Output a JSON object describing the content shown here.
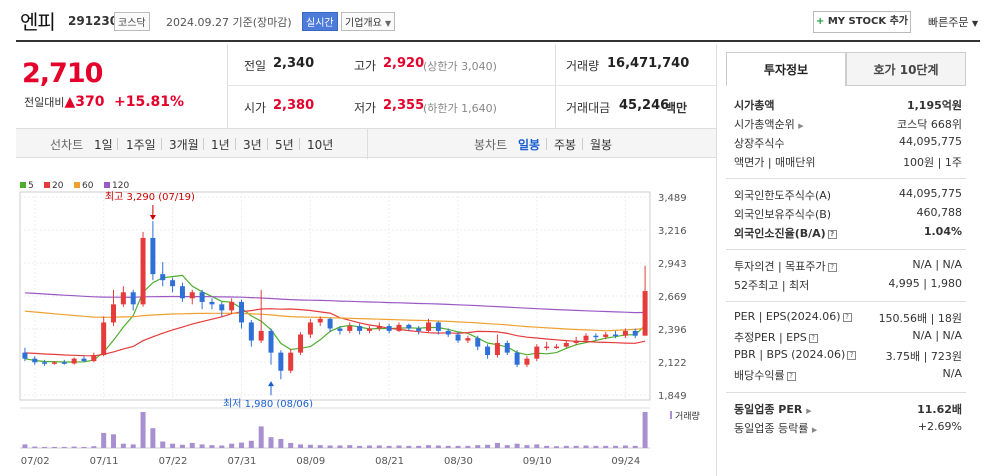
{
  "header": {
    "name": "엔피",
    "code": "291230",
    "market": "코스닥",
    "date_text": "2024.09.27 기준(장마감)",
    "realtime": "실시간",
    "company_info": "기업개요",
    "mystock_btn": "MY STOCK 추가",
    "quick_order": "빠른주문"
  },
  "price": {
    "current": "2,710",
    "change_label": "전일대비",
    "change": "370",
    "change_pct": "+15.81%"
  },
  "quotes": {
    "prev_label": "전일",
    "prev": "2,340",
    "open_label": "시가",
    "open": "2,380",
    "high_label": "고가",
    "high": "2,920",
    "upper_limit": "(상한가 3,040)",
    "low_label": "저가",
    "low": "2,355",
    "lower_limit": "(하한가 1,640)",
    "volume_label": "거래량",
    "volume": "16,471,740",
    "value_label": "거래대금",
    "value": "45,246",
    "value_unit": "백만"
  },
  "period_bar": {
    "line_chart": "선차트",
    "periods": [
      "1일",
      "1주일",
      "3개월",
      "1년",
      "3년",
      "5년",
      "10년"
    ],
    "candle_chart": "봉차트",
    "candle_periods": [
      "일봉",
      "주봉",
      "월봉"
    ],
    "active_candle": "일봉"
  },
  "chart_data": {
    "type": "candlestick",
    "legend": [
      "5",
      "20",
      "60",
      "120"
    ],
    "legend_colors": [
      "#4caf2c",
      "#e63b3b",
      "#f0a030",
      "#9b59c6"
    ],
    "y_ticks": [
      "3,489",
      "3,216",
      "2,943",
      "2,669",
      "2,396",
      "2,122",
      "1,849"
    ],
    "ylim": [
      1849,
      3489
    ],
    "x_ticks": [
      "07/02",
      "07/11",
      "07/22",
      "07/31",
      "08/09",
      "08/21",
      "08/30",
      "09/10",
      "09/24"
    ],
    "x_tick_index": [
      1,
      8,
      15,
      22,
      29,
      37,
      44,
      52,
      61
    ],
    "high_annotation": "최고 3,290 (07/19)",
    "high_value": 3290,
    "high_index": 13,
    "low_annotation": "최저 1,980 (08/06)",
    "low_value": 1980,
    "low_index": 25,
    "volume_label": "거래량",
    "candles": [
      [
        2200,
        2150,
        2240,
        2130
      ],
      [
        2150,
        2120,
        2170,
        2100
      ],
      [
        2120,
        2110,
        2140,
        2090
      ],
      [
        2110,
        2120,
        2130,
        2100
      ],
      [
        2120,
        2110,
        2140,
        2100
      ],
      [
        2110,
        2150,
        2160,
        2100
      ],
      [
        2150,
        2130,
        2170,
        2120
      ],
      [
        2130,
        2180,
        2200,
        2120
      ],
      [
        2180,
        2450,
        2500,
        2170
      ],
      [
        2450,
        2600,
        2720,
        2420
      ],
      [
        2600,
        2700,
        2750,
        2580
      ],
      [
        2700,
        2600,
        2720,
        2550
      ],
      [
        2600,
        3150,
        3200,
        2580
      ],
      [
        3150,
        2850,
        3290,
        2800
      ],
      [
        2850,
        2800,
        2950,
        2750
      ],
      [
        2800,
        2750,
        2820,
        2700
      ],
      [
        2750,
        2650,
        2780,
        2620
      ],
      [
        2650,
        2700,
        2720,
        2600
      ],
      [
        2700,
        2620,
        2720,
        2560
      ],
      [
        2620,
        2600,
        2650,
        2560
      ],
      [
        2600,
        2550,
        2620,
        2500
      ],
      [
        2550,
        2620,
        2650,
        2520
      ],
      [
        2620,
        2450,
        2640,
        2400
      ],
      [
        2450,
        2300,
        2470,
        2250
      ],
      [
        2300,
        2380,
        2720,
        2280
      ],
      [
        2380,
        2200,
        2400,
        2100
      ],
      [
        2200,
        2050,
        2220,
        1980
      ],
      [
        2050,
        2200,
        2230,
        2030
      ],
      [
        2200,
        2350,
        2370,
        2180
      ],
      [
        2350,
        2450,
        2480,
        2320
      ],
      [
        2450,
        2480,
        2500,
        2420
      ],
      [
        2480,
        2400,
        2490,
        2370
      ],
      [
        2400,
        2380,
        2420,
        2350
      ],
      [
        2380,
        2420,
        2450,
        2360
      ],
      [
        2420,
        2380,
        2440,
        2350
      ],
      [
        2380,
        2400,
        2420,
        2360
      ],
      [
        2400,
        2420,
        2450,
        2380
      ],
      [
        2420,
        2380,
        2440,
        2360
      ],
      [
        2380,
        2430,
        2450,
        2370
      ],
      [
        2430,
        2400,
        2440,
        2380
      ],
      [
        2400,
        2380,
        2420,
        2350
      ],
      [
        2380,
        2450,
        2480,
        2370
      ],
      [
        2450,
        2380,
        2460,
        2350
      ],
      [
        2380,
        2350,
        2400,
        2330
      ],
      [
        2350,
        2300,
        2370,
        2280
      ],
      [
        2300,
        2320,
        2340,
        2280
      ],
      [
        2320,
        2250,
        2340,
        2220
      ],
      [
        2250,
        2180,
        2270,
        2150
      ],
      [
        2180,
        2280,
        2350,
        2160
      ],
      [
        2280,
        2200,
        2300,
        2180
      ],
      [
        2200,
        2100,
        2220,
        2080
      ],
      [
        2100,
        2150,
        2170,
        2080
      ],
      [
        2150,
        2250,
        2270,
        2130
      ],
      [
        2250,
        2250,
        2290,
        2220
      ],
      [
        2250,
        2250,
        2270,
        2230
      ],
      [
        2250,
        2280,
        2300,
        2240
      ],
      [
        2280,
        2300,
        2330,
        2260
      ],
      [
        2300,
        2340,
        2360,
        2280
      ],
      [
        2340,
        2330,
        2360,
        2300
      ],
      [
        2330,
        2350,
        2370,
        2310
      ],
      [
        2350,
        2340,
        2380,
        2320
      ],
      [
        2340,
        2380,
        2400,
        2320
      ],
      [
        2380,
        2340,
        2400,
        2320
      ],
      [
        2340,
        2710,
        2920,
        2355
      ]
    ],
    "volumes": [
      10,
      4,
      3,
      3,
      3,
      4,
      3,
      5,
      42,
      38,
      12,
      10,
      100,
      55,
      18,
      12,
      9,
      14,
      10,
      8,
      7,
      12,
      15,
      20,
      60,
      30,
      25,
      14,
      10,
      9,
      8,
      7,
      7,
      8,
      6,
      7,
      7,
      6,
      7,
      6,
      6,
      8,
      7,
      6,
      6,
      6,
      8,
      9,
      14,
      8,
      12,
      8,
      10,
      6,
      5,
      6,
      6,
      7,
      6,
      6,
      6,
      7,
      6,
      100
    ]
  },
  "info_panel": {
    "tab_invest": "투자정보",
    "tab_orderbook": "호가 10단계",
    "market_cap_label": "시가총액",
    "market_cap": "1,195억원",
    "market_cap_rank_label": "시가총액순위",
    "market_cap_rank": "코스닥 668위",
    "shares_label": "상장주식수",
    "shares": "44,095,775",
    "par_label": "액면가 | 매매단위",
    "par": "100원 | 1주",
    "foreign_limit_label": "외국인한도주식수(A)",
    "foreign_limit": "44,095,775",
    "foreign_hold_label": "외국인보유주식수(B)",
    "foreign_hold": "460,788",
    "foreign_ratio_label": "외국인소진율(B/A)",
    "foreign_ratio": "1.04%",
    "opinion_label": "투자의견 | 목표주가",
    "opinion": "N/A | N/A",
    "week52_label": "52주최고 | 최저",
    "week52": "4,995 | 1,980",
    "per_label": "PER | EPS(2024.06)",
    "per": "150.56배 | 18원",
    "est_per_label": "추정PER | EPS",
    "est_per": "N/A | N/A",
    "pbr_label": "PBR | BPS (2024.06)",
    "pbr": "3.75배 | 723원",
    "div_label": "배당수익률",
    "div": "N/A",
    "sector_per_label": "동일업종 PER",
    "sector_per": "11.62배",
    "sector_rate_label": "동일업종 등락률",
    "sector_rate": "+2.69%"
  }
}
